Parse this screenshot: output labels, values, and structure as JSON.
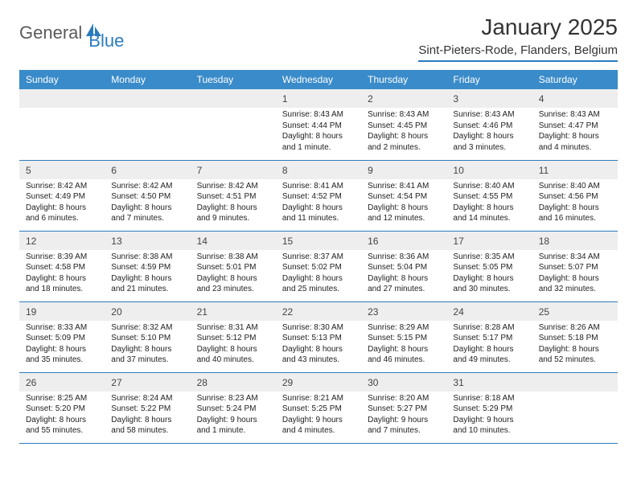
{
  "logo": {
    "text1": "General",
    "text2": "Blue"
  },
  "title": "January 2025",
  "location": "Sint-Pieters-Rode, Flanders, Belgium",
  "colors": {
    "header_bg": "#3a8bc9",
    "border": "#2b7bbf",
    "daynum_bg": "#eeeeee",
    "logo_gray": "#5a5a5a",
    "logo_blue": "#2b7bbf"
  },
  "weekdays": [
    "Sunday",
    "Monday",
    "Tuesday",
    "Wednesday",
    "Thursday",
    "Friday",
    "Saturday"
  ],
  "weeks": [
    [
      null,
      null,
      null,
      {
        "n": "1",
        "sr": "Sunrise: 8:43 AM",
        "ss": "Sunset: 4:44 PM",
        "dl": "Daylight: 8 hours and 1 minute."
      },
      {
        "n": "2",
        "sr": "Sunrise: 8:43 AM",
        "ss": "Sunset: 4:45 PM",
        "dl": "Daylight: 8 hours and 2 minutes."
      },
      {
        "n": "3",
        "sr": "Sunrise: 8:43 AM",
        "ss": "Sunset: 4:46 PM",
        "dl": "Daylight: 8 hours and 3 minutes."
      },
      {
        "n": "4",
        "sr": "Sunrise: 8:43 AM",
        "ss": "Sunset: 4:47 PM",
        "dl": "Daylight: 8 hours and 4 minutes."
      }
    ],
    [
      {
        "n": "5",
        "sr": "Sunrise: 8:42 AM",
        "ss": "Sunset: 4:49 PM",
        "dl": "Daylight: 8 hours and 6 minutes."
      },
      {
        "n": "6",
        "sr": "Sunrise: 8:42 AM",
        "ss": "Sunset: 4:50 PM",
        "dl": "Daylight: 8 hours and 7 minutes."
      },
      {
        "n": "7",
        "sr": "Sunrise: 8:42 AM",
        "ss": "Sunset: 4:51 PM",
        "dl": "Daylight: 8 hours and 9 minutes."
      },
      {
        "n": "8",
        "sr": "Sunrise: 8:41 AM",
        "ss": "Sunset: 4:52 PM",
        "dl": "Daylight: 8 hours and 11 minutes."
      },
      {
        "n": "9",
        "sr": "Sunrise: 8:41 AM",
        "ss": "Sunset: 4:54 PM",
        "dl": "Daylight: 8 hours and 12 minutes."
      },
      {
        "n": "10",
        "sr": "Sunrise: 8:40 AM",
        "ss": "Sunset: 4:55 PM",
        "dl": "Daylight: 8 hours and 14 minutes."
      },
      {
        "n": "11",
        "sr": "Sunrise: 8:40 AM",
        "ss": "Sunset: 4:56 PM",
        "dl": "Daylight: 8 hours and 16 minutes."
      }
    ],
    [
      {
        "n": "12",
        "sr": "Sunrise: 8:39 AM",
        "ss": "Sunset: 4:58 PM",
        "dl": "Daylight: 8 hours and 18 minutes."
      },
      {
        "n": "13",
        "sr": "Sunrise: 8:38 AM",
        "ss": "Sunset: 4:59 PM",
        "dl": "Daylight: 8 hours and 21 minutes."
      },
      {
        "n": "14",
        "sr": "Sunrise: 8:38 AM",
        "ss": "Sunset: 5:01 PM",
        "dl": "Daylight: 8 hours and 23 minutes."
      },
      {
        "n": "15",
        "sr": "Sunrise: 8:37 AM",
        "ss": "Sunset: 5:02 PM",
        "dl": "Daylight: 8 hours and 25 minutes."
      },
      {
        "n": "16",
        "sr": "Sunrise: 8:36 AM",
        "ss": "Sunset: 5:04 PM",
        "dl": "Daylight: 8 hours and 27 minutes."
      },
      {
        "n": "17",
        "sr": "Sunrise: 8:35 AM",
        "ss": "Sunset: 5:05 PM",
        "dl": "Daylight: 8 hours and 30 minutes."
      },
      {
        "n": "18",
        "sr": "Sunrise: 8:34 AM",
        "ss": "Sunset: 5:07 PM",
        "dl": "Daylight: 8 hours and 32 minutes."
      }
    ],
    [
      {
        "n": "19",
        "sr": "Sunrise: 8:33 AM",
        "ss": "Sunset: 5:09 PM",
        "dl": "Daylight: 8 hours and 35 minutes."
      },
      {
        "n": "20",
        "sr": "Sunrise: 8:32 AM",
        "ss": "Sunset: 5:10 PM",
        "dl": "Daylight: 8 hours and 37 minutes."
      },
      {
        "n": "21",
        "sr": "Sunrise: 8:31 AM",
        "ss": "Sunset: 5:12 PM",
        "dl": "Daylight: 8 hours and 40 minutes."
      },
      {
        "n": "22",
        "sr": "Sunrise: 8:30 AM",
        "ss": "Sunset: 5:13 PM",
        "dl": "Daylight: 8 hours and 43 minutes."
      },
      {
        "n": "23",
        "sr": "Sunrise: 8:29 AM",
        "ss": "Sunset: 5:15 PM",
        "dl": "Daylight: 8 hours and 46 minutes."
      },
      {
        "n": "24",
        "sr": "Sunrise: 8:28 AM",
        "ss": "Sunset: 5:17 PM",
        "dl": "Daylight: 8 hours and 49 minutes."
      },
      {
        "n": "25",
        "sr": "Sunrise: 8:26 AM",
        "ss": "Sunset: 5:18 PM",
        "dl": "Daylight: 8 hours and 52 minutes."
      }
    ],
    [
      {
        "n": "26",
        "sr": "Sunrise: 8:25 AM",
        "ss": "Sunset: 5:20 PM",
        "dl": "Daylight: 8 hours and 55 minutes."
      },
      {
        "n": "27",
        "sr": "Sunrise: 8:24 AM",
        "ss": "Sunset: 5:22 PM",
        "dl": "Daylight: 8 hours and 58 minutes."
      },
      {
        "n": "28",
        "sr": "Sunrise: 8:23 AM",
        "ss": "Sunset: 5:24 PM",
        "dl": "Daylight: 9 hours and 1 minute."
      },
      {
        "n": "29",
        "sr": "Sunrise: 8:21 AM",
        "ss": "Sunset: 5:25 PM",
        "dl": "Daylight: 9 hours and 4 minutes."
      },
      {
        "n": "30",
        "sr": "Sunrise: 8:20 AM",
        "ss": "Sunset: 5:27 PM",
        "dl": "Daylight: 9 hours and 7 minutes."
      },
      {
        "n": "31",
        "sr": "Sunrise: 8:18 AM",
        "ss": "Sunset: 5:29 PM",
        "dl": "Daylight: 9 hours and 10 minutes."
      },
      null
    ]
  ]
}
